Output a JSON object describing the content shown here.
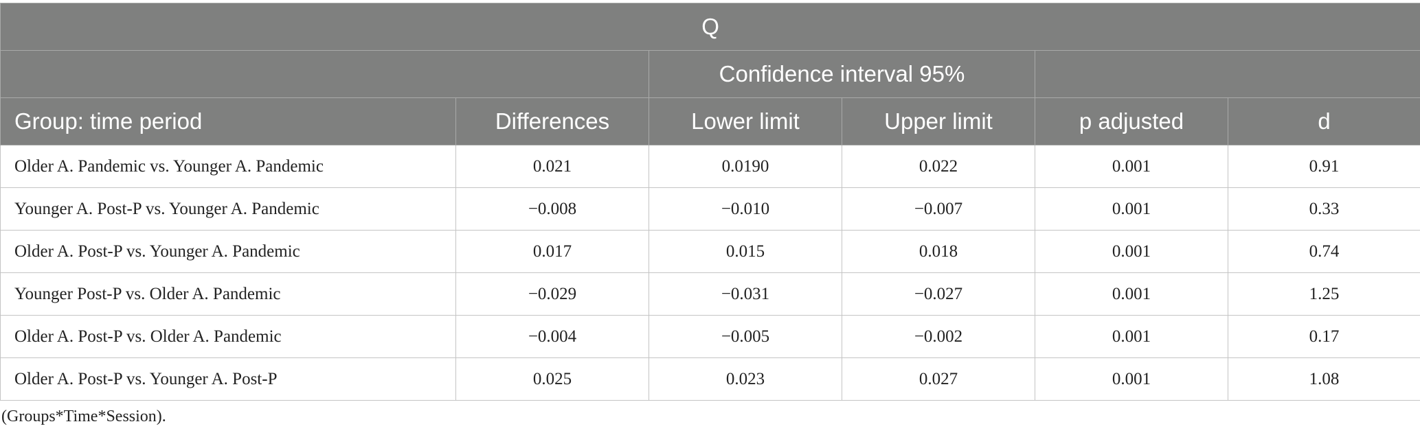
{
  "table": {
    "title": "Q",
    "group_header": "Confidence interval 95%",
    "columns": [
      "Group: time period",
      "Differences",
      "Lower limit",
      "Upper limit",
      "p adjusted",
      "d"
    ],
    "rows": [
      [
        "Older A. Pandemic vs. Younger A. Pandemic",
        "0.021",
        "0.0190",
        "0.022",
        "0.001",
        "0.91"
      ],
      [
        "Younger A. Post-P vs. Younger A. Pandemic",
        "−0.008",
        "−0.010",
        "−0.007",
        "0.001",
        "0.33"
      ],
      [
        "Older A. Post-P vs. Younger A. Pandemic",
        "0.017",
        "0.015",
        "0.018",
        "0.001",
        "0.74"
      ],
      [
        "Younger Post-P vs. Older A. Pandemic",
        "−0.029",
        "−0.031",
        "−0.027",
        "0.001",
        "1.25"
      ],
      [
        "Older A. Post-P vs. Older A. Pandemic",
        "−0.004",
        "−0.005",
        "−0.002",
        "0.001",
        "0.17"
      ],
      [
        "Older A. Post-P vs. Younger A. Post-P",
        "0.025",
        "0.023",
        "0.027",
        "0.001",
        "1.08"
      ]
    ],
    "footnote": "(Groups*Time*Session)."
  }
}
